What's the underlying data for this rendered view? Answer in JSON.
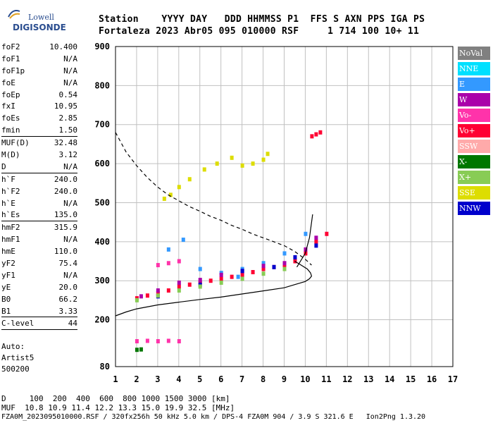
{
  "logo": {
    "line1": "Lowell",
    "line2": "DIGISONDE"
  },
  "header": {
    "line1": "Station    YYYY DAY   DDD HHMMSS P1  FFS S AXN PPS IGA PS",
    "line2": "Fortaleza 2023 Abr05 095 010000 RSF     1 714 100 10+ 11"
  },
  "params": [
    {
      "label": "foF2",
      "value": "10.400"
    },
    {
      "label": "foF1",
      "value": "N/A"
    },
    {
      "label": "foF1p",
      "value": "N/A"
    },
    {
      "label": "foE",
      "value": "N/A"
    },
    {
      "label": "foEp",
      "value": "0.54"
    },
    {
      "label": "fxI",
      "value": "10.95"
    },
    {
      "label": "foEs",
      "value": "2.85"
    },
    {
      "label": "fmin",
      "value": "1.50"
    },
    {
      "sep": true
    },
    {
      "label": "MUF(D)",
      "value": "32.48"
    },
    {
      "label": "M(D)",
      "value": "3.12"
    },
    {
      "label": "D",
      "value": "N/A"
    },
    {
      "sep": true
    },
    {
      "label": "h`F",
      "value": "240.0"
    },
    {
      "label": "h`F2",
      "value": "240.0"
    },
    {
      "label": "h`E",
      "value": "N/A"
    },
    {
      "label": "h`Es",
      "value": "135.0"
    },
    {
      "sep": true
    },
    {
      "label": "hmF2",
      "value": "315.9"
    },
    {
      "label": "hmF1",
      "value": "N/A"
    },
    {
      "label": "hmE",
      "value": "110.0"
    },
    {
      "label": "yF2",
      "value": "75.4"
    },
    {
      "label": "yF1",
      "value": "N/A"
    },
    {
      "label": "yE",
      "value": "20.0"
    },
    {
      "label": "B0",
      "value": "66.2"
    },
    {
      "label": "B1",
      "value": "3.33"
    },
    {
      "sep": true
    },
    {
      "label": "C-level",
      "value": "44"
    },
    {
      "sep": true
    }
  ],
  "auto": {
    "line1": "Auto:",
    "line2": "Artist5",
    "line3": "500200"
  },
  "legend": [
    {
      "label": "NoVal",
      "color": "#808080"
    },
    {
      "label": "NNE",
      "color": "#00e0ff"
    },
    {
      "label": "E",
      "color": "#3399ff"
    },
    {
      "label": "W",
      "color": "#aa00aa"
    },
    {
      "label": "Vo-",
      "color": "#ff33aa"
    },
    {
      "label": "Vo+",
      "color": "#ff0033"
    },
    {
      "label": "SSW",
      "color": "#ffaaaa"
    },
    {
      "label": "X-",
      "color": "#007700"
    },
    {
      "label": "X+",
      "color": "#88cc55"
    },
    {
      "label": "SSE",
      "color": "#dddd00"
    },
    {
      "label": "NNW",
      "color": "#0000cc"
    }
  ],
  "footer": {
    "line1": "D     100  200  400  600  800 1000 1500 3000 [km]",
    "line2": "MUF  10.8 10.9 11.4 12.2 13.3 15.0 19.9 32.5 [MHz]",
    "line3": "FZA0M_2023095010000.RSF / 320fx256h 50 kHz 5.0 km / DPS-4 FZA0M 904 / 3.9 S 321.6 E   Ion2Png 1.3.20"
  },
  "chart_data": {
    "type": "scatter",
    "x_ticks": [
      "1",
      "2",
      "3",
      "4",
      "5",
      "6",
      "7",
      "8",
      "9",
      "10",
      "11",
      "12",
      "13",
      "14",
      "15",
      "16",
      "17"
    ],
    "y_ticks": [
      "80",
      "200",
      "300",
      "400",
      "500",
      "600",
      "700",
      "800",
      "900"
    ],
    "xlim": [
      1,
      17
    ],
    "ylim": [
      80,
      900
    ],
    "grid": true,
    "legend_position": "right",
    "series": [
      {
        "color": "#dddd00",
        "points": [
          [
            3.3,
            510
          ],
          [
            3.6,
            520
          ],
          [
            4.0,
            540
          ],
          [
            4.5,
            560
          ],
          [
            5.2,
            585
          ],
          [
            5.8,
            600
          ],
          [
            6.5,
            615
          ],
          [
            7.0,
            595
          ],
          [
            7.5,
            600
          ],
          [
            8.0,
            610
          ],
          [
            8.2,
            625
          ]
        ]
      },
      {
        "color": "#3399ff",
        "points": [
          [
            3.5,
            380
          ],
          [
            4.2,
            405
          ],
          [
            5.0,
            330
          ],
          [
            6.0,
            320
          ],
          [
            6.8,
            310
          ],
          [
            7.0,
            330
          ],
          [
            8.0,
            345
          ],
          [
            9.0,
            370
          ],
          [
            10.0,
            420
          ]
        ]
      },
      {
        "color": "#ff0033",
        "points": [
          [
            2.0,
            255
          ],
          [
            2.5,
            262
          ],
          [
            3.0,
            268
          ],
          [
            3.5,
            275
          ],
          [
            4.0,
            285
          ],
          [
            4.5,
            290
          ],
          [
            5.0,
            295
          ],
          [
            5.5,
            300
          ],
          [
            6.0,
            305
          ],
          [
            6.5,
            310
          ],
          [
            7.0,
            315
          ],
          [
            7.5,
            322
          ],
          [
            8.0,
            330
          ],
          [
            8.5,
            335
          ],
          [
            9.0,
            340
          ],
          [
            9.5,
            350
          ],
          [
            10.0,
            370
          ],
          [
            10.5,
            400
          ],
          [
            11.0,
            420
          ]
        ]
      },
      {
        "color": "#aa00aa",
        "points": [
          [
            2.2,
            260
          ],
          [
            3.0,
            275
          ],
          [
            4.0,
            295
          ],
          [
            5.0,
            302
          ],
          [
            6.0,
            315
          ],
          [
            7.0,
            325
          ],
          [
            8.0,
            338
          ],
          [
            9.0,
            345
          ],
          [
            10.0,
            380
          ],
          [
            10.5,
            410
          ]
        ]
      },
      {
        "color": "#0000cc",
        "points": [
          [
            3.0,
            260
          ],
          [
            5.0,
            290
          ],
          [
            7.0,
            325
          ],
          [
            8.5,
            335
          ],
          [
            9.5,
            360
          ],
          [
            10.5,
            390
          ]
        ]
      },
      {
        "color": "#88cc55",
        "points": [
          [
            2.0,
            250
          ],
          [
            3.0,
            262
          ],
          [
            4.0,
            275
          ],
          [
            5.0,
            285
          ],
          [
            6.0,
            295
          ],
          [
            7.0,
            305
          ],
          [
            8.0,
            318
          ],
          [
            9.0,
            330
          ]
        ]
      },
      {
        "color": "#ff33aa",
        "points": [
          [
            2.0,
            145
          ],
          [
            2.5,
            146
          ],
          [
            3.0,
            145
          ],
          [
            3.5,
            146
          ],
          [
            4.0,
            145
          ],
          [
            3.0,
            340
          ],
          [
            3.5,
            345
          ],
          [
            4.0,
            350
          ]
        ]
      },
      {
        "color": "#007700",
        "points": [
          [
            2.0,
            123
          ],
          [
            2.2,
            124
          ]
        ]
      },
      {
        "color": "#ff0033",
        "points": [
          [
            10.3,
            670
          ],
          [
            10.5,
            675
          ],
          [
            10.7,
            680
          ]
        ]
      }
    ],
    "curves": [
      {
        "style": "dashed",
        "points": [
          [
            1.0,
            680
          ],
          [
            1.5,
            630
          ],
          [
            2.0,
            595
          ],
          [
            2.5,
            565
          ],
          [
            3.0,
            540
          ],
          [
            3.5,
            520
          ],
          [
            4.0,
            505
          ],
          [
            4.5,
            490
          ],
          [
            5.0,
            478
          ],
          [
            5.5,
            465
          ],
          [
            6.0,
            455
          ],
          [
            6.5,
            442
          ],
          [
            7.0,
            432
          ],
          [
            7.5,
            420
          ],
          [
            8.0,
            410
          ],
          [
            8.5,
            400
          ],
          [
            9.0,
            390
          ],
          [
            9.5,
            375
          ],
          [
            10.0,
            355
          ],
          [
            10.3,
            340
          ]
        ]
      },
      {
        "style": "solid",
        "points": [
          [
            1.0,
            210
          ],
          [
            1.5,
            220
          ],
          [
            2.0,
            228
          ],
          [
            3.0,
            238
          ],
          [
            4.0,
            245
          ],
          [
            5.0,
            252
          ],
          [
            6.0,
            258
          ],
          [
            7.0,
            266
          ],
          [
            8.0,
            274
          ],
          [
            9.0,
            282
          ],
          [
            9.5,
            290
          ],
          [
            10.0,
            298
          ],
          [
            10.2,
            305
          ],
          [
            10.3,
            312
          ],
          [
            10.25,
            320
          ],
          [
            10.1,
            330
          ],
          [
            9.8,
            340
          ],
          [
            9.5,
            350
          ]
        ]
      },
      {
        "style": "solid",
        "points": [
          [
            9.6,
            335
          ],
          [
            10.0,
            370
          ],
          [
            10.2,
            410
          ],
          [
            10.35,
            470
          ]
        ]
      }
    ]
  }
}
